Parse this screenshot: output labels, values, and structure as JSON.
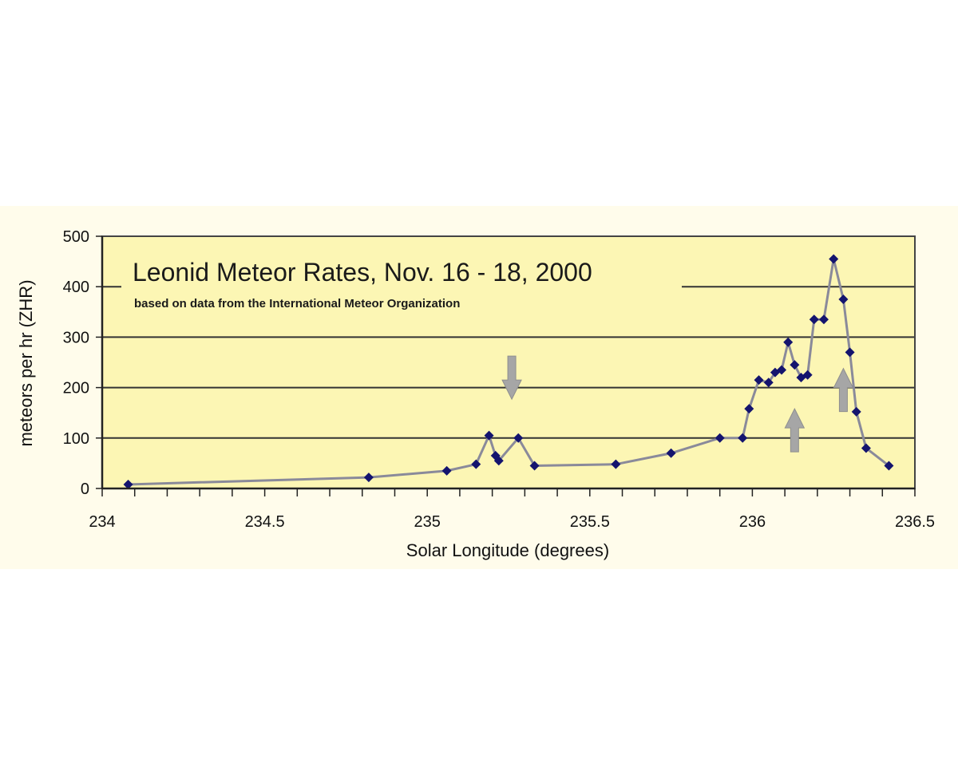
{
  "chart_data": {
    "type": "line",
    "title": "Leonid Meteor Rates, Nov. 16 - 18, 2000",
    "subtitle": "based on data from the International Meteor Organization",
    "xlabel": "Solar Longitude (degrees)",
    "ylabel": "meteors per hr (ZHR)",
    "xlim": [
      234,
      236.5
    ],
    "ylim": [
      0,
      500
    ],
    "x_ticks": [
      "234",
      "234.5",
      "235",
      "235.5",
      "236",
      "236.5"
    ],
    "y_ticks": [
      "0",
      "100",
      "200",
      "300",
      "400",
      "500"
    ],
    "grid": "horizontal",
    "colors": {
      "plot_background": "#fcf6b4",
      "line": "#8a8a9a",
      "marker": "#14146e",
      "gridline": "#333333",
      "arrow": "#a6a6a6"
    },
    "series": [
      {
        "x": [
          234.08,
          234.82,
          235.06,
          235.15,
          235.19,
          235.21,
          235.22,
          235.28,
          235.33,
          235.58,
          235.75,
          235.9,
          235.97,
          235.99,
          236.02,
          236.05,
          236.07,
          236.09,
          236.11,
          236.13,
          236.15,
          236.17,
          236.19,
          236.22,
          236.25,
          236.28,
          236.3,
          236.32,
          236.35,
          236.42
        ],
        "y": [
          8,
          22,
          35,
          48,
          105,
          65,
          55,
          100,
          45,
          48,
          70,
          100,
          100,
          158,
          215,
          210,
          230,
          235,
          290,
          245,
          220,
          225,
          335,
          335,
          455,
          375,
          270,
          152,
          80,
          45
        ]
      }
    ],
    "annotations": [
      {
        "type": "arrow",
        "direction": "down",
        "x": 235.26,
        "y": 215
      },
      {
        "type": "arrow",
        "direction": "up",
        "x": 236.13,
        "y": 120
      },
      {
        "type": "arrow",
        "direction": "up",
        "x": 236.28,
        "y": 200
      }
    ]
  }
}
